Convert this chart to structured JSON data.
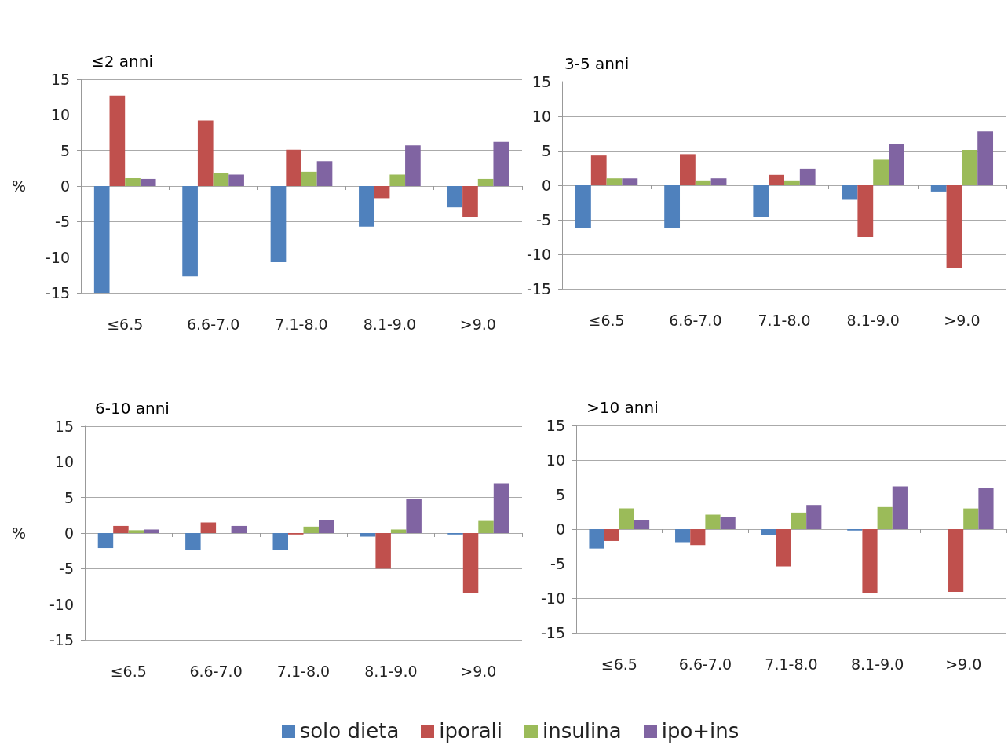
{
  "chart_data": [
    {
      "type": "bar",
      "title": "≤2 anni",
      "ylabel": "%",
      "categories": [
        "≤6.5",
        "6.6-7.0",
        "7.1-8.0",
        "8.1-9.0",
        ">9.0"
      ],
      "ylim": [
        -15,
        15
      ],
      "yticks": [
        -15,
        -10,
        -5,
        0,
        5,
        10,
        15
      ],
      "grid": "y",
      "legend": "bottom",
      "series": [
        {
          "name": "solo dieta",
          "color": "#4f81bd",
          "values": [
            -15,
            -12.7,
            -10.7,
            -5.7,
            -3.0
          ]
        },
        {
          "name": "iporali",
          "color": "#c0504d",
          "values": [
            12.7,
            9.2,
            5.1,
            -1.7,
            -4.4
          ]
        },
        {
          "name": "insulina",
          "color": "#9bbb59",
          "values": [
            1.1,
            1.8,
            2.0,
            1.6,
            1.0
          ]
        },
        {
          "name": "ipo+ins",
          "color": "#8064a2",
          "values": [
            1.0,
            1.6,
            3.5,
            5.7,
            6.2
          ]
        }
      ]
    },
    {
      "type": "bar",
      "title": "3-5 anni",
      "categories": [
        "≤6.5",
        "6.6-7.0",
        "7.1-8.0",
        "8.1-9.0",
        ">9.0"
      ],
      "ylim": [
        -15,
        15
      ],
      "yticks": [
        -15,
        -10,
        -5,
        0,
        5,
        10,
        15
      ],
      "grid": "y",
      "series": [
        {
          "color": "#4f81bd",
          "values": [
            -6.2,
            -6.2,
            -4.6,
            -2.1,
            -0.9
          ]
        },
        {
          "color": "#c0504d",
          "values": [
            4.3,
            4.5,
            1.5,
            -7.5,
            -12.0
          ]
        },
        {
          "color": "#9bbb59",
          "values": [
            1.0,
            0.7,
            0.7,
            3.7,
            5.1
          ]
        },
        {
          "color": "#8064a2",
          "values": [
            1.0,
            1.0,
            2.4,
            5.9,
            7.8
          ]
        }
      ]
    },
    {
      "type": "bar",
      "title": "6-10 anni",
      "ylabel": "%",
      "categories": [
        "≤6.5",
        "6.6-7.0",
        "7.1-8.0",
        "8.1-9.0",
        ">9.0"
      ],
      "ylim": [
        -15,
        15
      ],
      "yticks": [
        -15,
        -10,
        -5,
        0,
        5,
        10,
        15
      ],
      "grid": "y",
      "series": [
        {
          "color": "#4f81bd",
          "values": [
            -2.1,
            -2.4,
            -2.4,
            -0.5,
            -0.2
          ]
        },
        {
          "color": "#c0504d",
          "values": [
            1.0,
            1.5,
            -0.2,
            -5.0,
            -8.4
          ]
        },
        {
          "color": "#9bbb59",
          "values": [
            0.4,
            0,
            0.9,
            0.5,
            1.7
          ]
        },
        {
          "color": "#8064a2",
          "values": [
            0.5,
            1.0,
            1.8,
            4.8,
            7.0
          ]
        }
      ]
    },
    {
      "type": "bar",
      "title": ">10 anni",
      "categories": [
        "≤6.5",
        "6.6-7.0",
        "7.1-8.0",
        "8.1-9.0",
        ">9.0"
      ],
      "ylim": [
        -15,
        15
      ],
      "yticks": [
        -15,
        -10,
        -5,
        0,
        5,
        10,
        15
      ],
      "grid": "y",
      "series": [
        {
          "color": "#4f81bd",
          "values": [
            -2.8,
            -2.0,
            -0.9,
            -0.2,
            0
          ]
        },
        {
          "color": "#c0504d",
          "values": [
            -1.7,
            -2.3,
            -5.4,
            -9.2,
            -9.1
          ]
        },
        {
          "color": "#9bbb59",
          "values": [
            3.0,
            2.1,
            2.4,
            3.2,
            3.0
          ]
        },
        {
          "color": "#8064a2",
          "values": [
            1.3,
            1.8,
            3.5,
            6.2,
            6.0
          ]
        }
      ]
    }
  ]
}
